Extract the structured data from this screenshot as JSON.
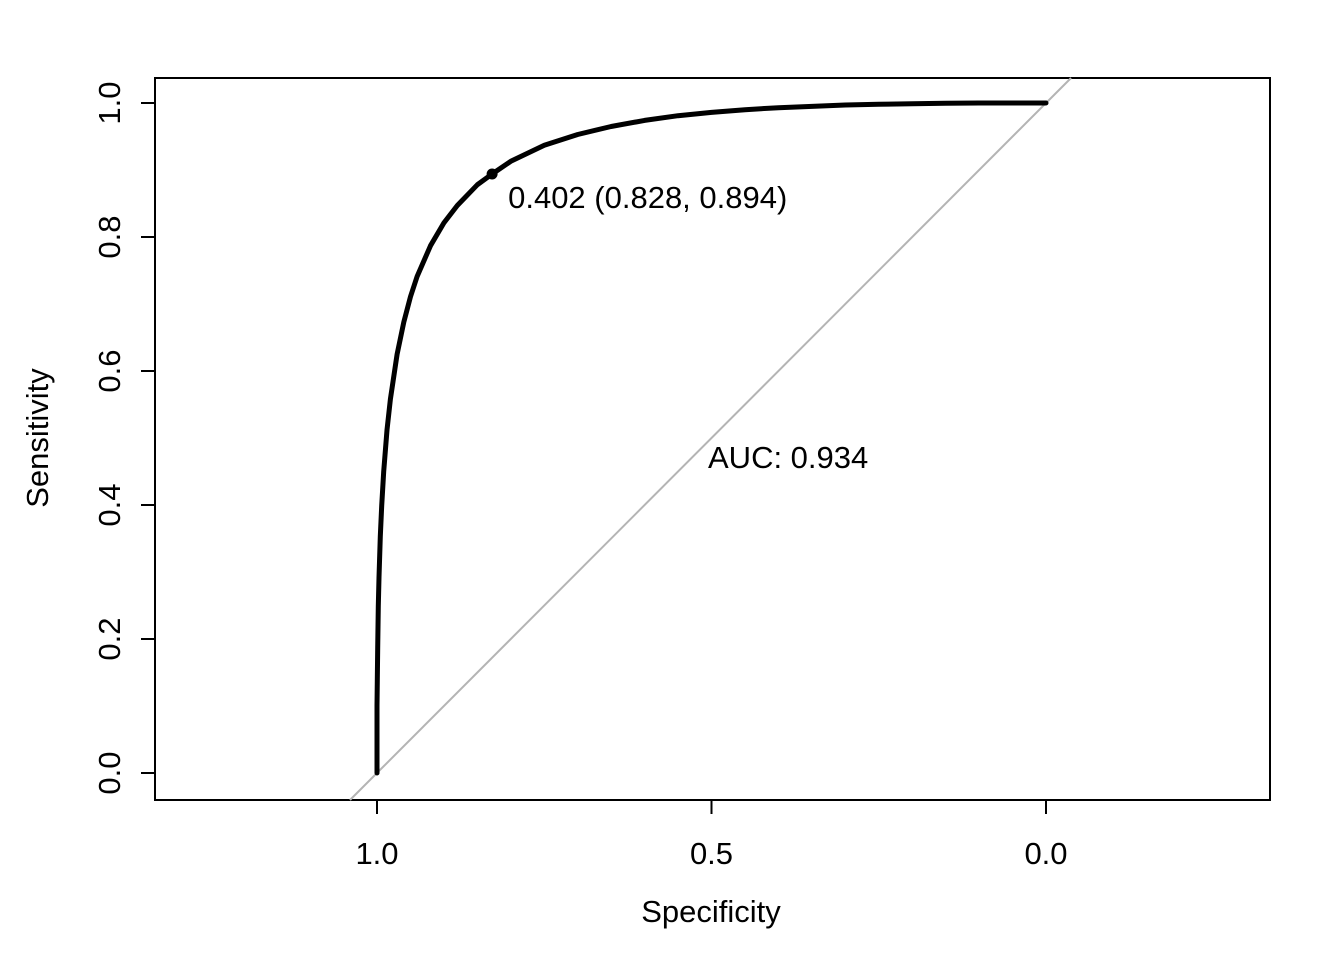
{
  "chart_data": {
    "type": "line",
    "title": "",
    "xlabel": "Specificity",
    "ylabel": "Sensitivity",
    "x_axis_reversed": true,
    "xlim": [
      1.0,
      0.0
    ],
    "ylim": [
      0.0,
      1.0
    ],
    "grid": false,
    "x_ticks": [
      {
        "v": 1.0,
        "label": "1.0"
      },
      {
        "v": 0.5,
        "label": "0.5"
      },
      {
        "v": 0.0,
        "label": "0.0"
      }
    ],
    "y_ticks": [
      {
        "v": 0.0,
        "label": "0.0"
      },
      {
        "v": 0.2,
        "label": "0.2"
      },
      {
        "v": 0.4,
        "label": "0.4"
      },
      {
        "v": 0.6,
        "label": "0.6"
      },
      {
        "v": 0.8,
        "label": "0.8"
      },
      {
        "v": 1.0,
        "label": "1.0"
      }
    ],
    "auc": 0.934,
    "auc_label": "AUC: 0.934",
    "threshold": {
      "value": 0.402,
      "specificity": 0.828,
      "sensitivity": 0.894,
      "label": "0.402 (0.828, 0.894)"
    },
    "diagonal": {
      "from": [
        1.0,
        0.0
      ],
      "to": [
        0.0,
        1.0
      ],
      "color": "#b4b4b4"
    },
    "curve_color": "#000000",
    "roc_points": [
      [
        1.0,
        0.0
      ],
      [
        1.0,
        0.1
      ],
      [
        0.9995,
        0.138
      ],
      [
        0.999,
        0.187
      ],
      [
        0.998,
        0.249
      ],
      [
        0.997,
        0.292
      ],
      [
        0.995,
        0.353
      ],
      [
        0.993,
        0.399
      ],
      [
        0.99,
        0.45
      ],
      [
        0.985,
        0.512
      ],
      [
        0.98,
        0.558
      ],
      [
        0.97,
        0.625
      ],
      [
        0.96,
        0.673
      ],
      [
        0.95,
        0.711
      ],
      [
        0.94,
        0.741
      ],
      [
        0.92,
        0.787
      ],
      [
        0.9,
        0.821
      ],
      [
        0.88,
        0.847
      ],
      [
        0.85,
        0.878
      ],
      [
        0.828,
        0.894
      ],
      [
        0.8,
        0.913
      ],
      [
        0.75,
        0.937
      ],
      [
        0.7,
        0.953
      ],
      [
        0.65,
        0.965
      ],
      [
        0.6,
        0.974
      ],
      [
        0.55,
        0.981
      ],
      [
        0.5,
        0.986
      ],
      [
        0.45,
        0.99
      ],
      [
        0.4,
        0.993
      ],
      [
        0.35,
        0.995
      ],
      [
        0.3,
        0.997
      ],
      [
        0.25,
        0.998
      ],
      [
        0.2,
        0.999
      ],
      [
        0.15,
        0.9995
      ],
      [
        0.1,
        1.0
      ],
      [
        0.05,
        1.0
      ],
      [
        0.0,
        1.0
      ]
    ]
  }
}
